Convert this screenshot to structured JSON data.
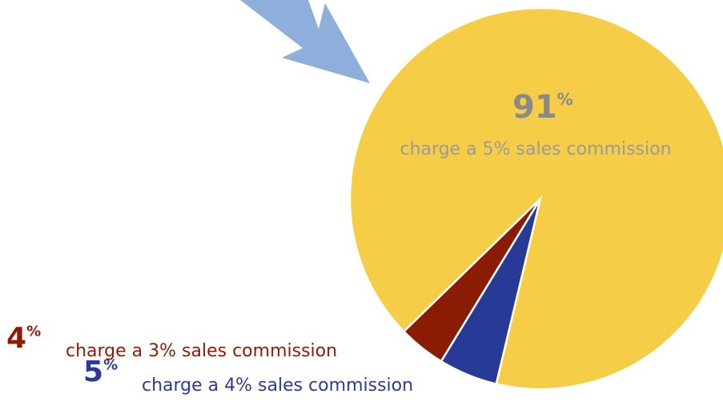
{
  "chart_data": {
    "type": "pie",
    "categories": [
      "charge a 4% sales commission",
      "charge a 3% sales commission",
      "charge a 5% sales commission"
    ],
    "values": [
      5,
      4,
      91
    ],
    "value_labels": [
      "5%",
      "4%",
      "91%"
    ],
    "colors": [
      "#263a96",
      "#8a1c04",
      "#f5cd47"
    ]
  }
}
